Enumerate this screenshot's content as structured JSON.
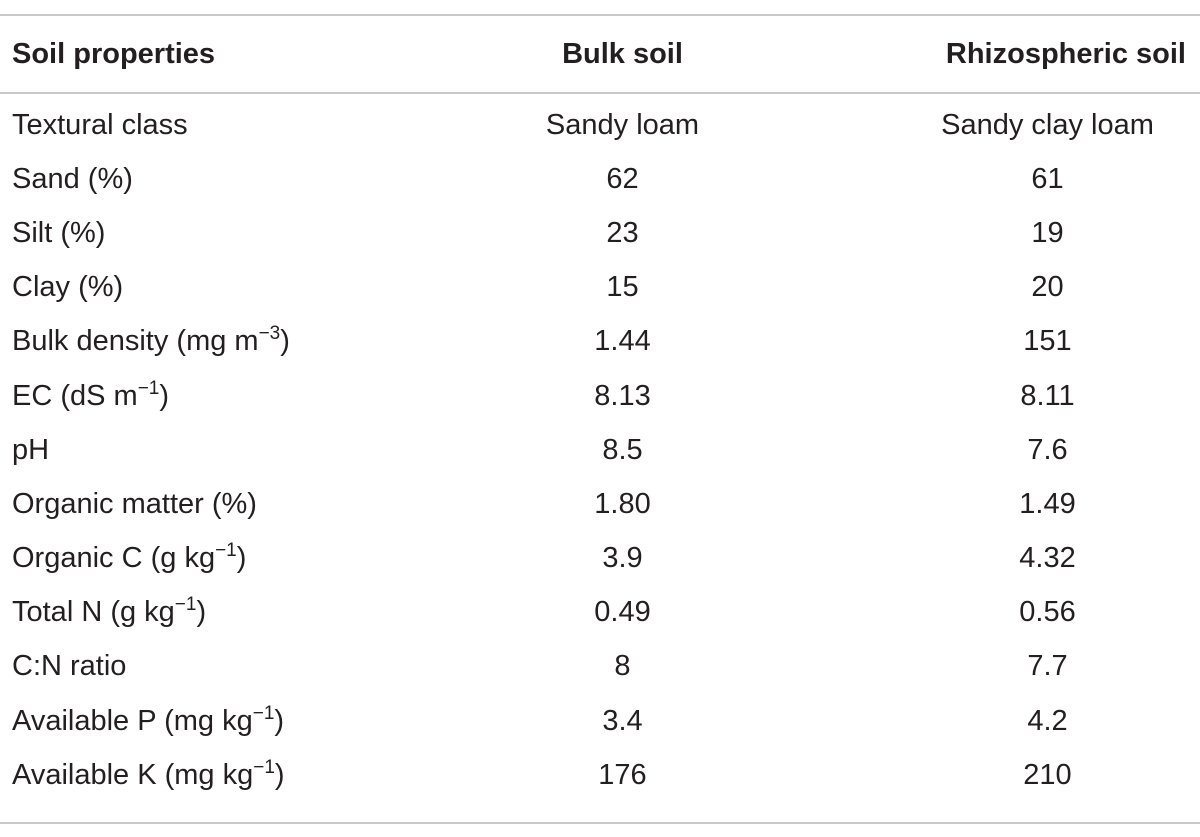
{
  "table": {
    "headers": {
      "property": "Soil properties",
      "bulk": "Bulk soil",
      "rhizo": "Rhizospheric soil"
    },
    "rows": [
      {
        "label": "Textural class",
        "sup": "",
        "close": "",
        "bulk": "Sandy loam",
        "rhizo": "Sandy clay loam"
      },
      {
        "label": "Sand (%)",
        "sup": "",
        "close": "",
        "bulk": "62",
        "rhizo": "61"
      },
      {
        "label": "Silt (%)",
        "sup": "",
        "close": "",
        "bulk": "23",
        "rhizo": "19"
      },
      {
        "label": "Clay (%)",
        "sup": "",
        "close": "",
        "bulk": "15",
        "rhizo": "20"
      },
      {
        "label": "Bulk density (mg m",
        "sup": "−3",
        "close": ")",
        "bulk": "1.44",
        "rhizo": "151"
      },
      {
        "label": "EC (dS m",
        "sup": "−1",
        "close": ")",
        "bulk": "8.13",
        "rhizo": "8.11"
      },
      {
        "label": "pH",
        "sup": "",
        "close": "",
        "bulk": "8.5",
        "rhizo": "7.6"
      },
      {
        "label": "Organic matter (%)",
        "sup": "",
        "close": "",
        "bulk": "1.80",
        "rhizo": "1.49"
      },
      {
        "label": "Organic C (g kg",
        "sup": "−1",
        "close": ")",
        "bulk": "3.9",
        "rhizo": "4.32"
      },
      {
        "label": "Total N (g kg",
        "sup": "−1",
        "close": ")",
        "bulk": "0.49",
        "rhizo": "0.56"
      },
      {
        "label": "C:N ratio",
        "sup": "",
        "close": "",
        "bulk": "8",
        "rhizo": "7.7"
      },
      {
        "label": "Available P (mg kg",
        "sup": "−1",
        "close": ")",
        "bulk": "3.4",
        "rhizo": "4.2"
      },
      {
        "label": "Available K (mg kg",
        "sup": "−1",
        "close": ")",
        "bulk": "176",
        "rhizo": "210"
      }
    ]
  }
}
